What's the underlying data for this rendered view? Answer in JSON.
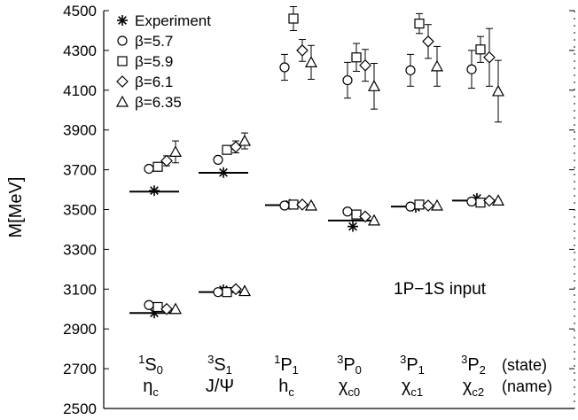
{
  "chart_data": {
    "type": "scatter",
    "ylabel": "M[MeV]",
    "ylim": [
      2500,
      4500
    ],
    "yticks": [
      2500,
      2700,
      2900,
      3100,
      3300,
      3500,
      3700,
      3900,
      4100,
      4300,
      4500
    ],
    "annotation": "1P−1S input",
    "row_labels": [
      "(state)",
      "(name)"
    ],
    "categories": [
      {
        "state_sym": "S",
        "state_sup": "1",
        "state_sub": "0",
        "name": "η",
        "name_sub": "c"
      },
      {
        "state_sym": "S",
        "state_sup": "3",
        "state_sub": "1",
        "name": "J/Ψ",
        "name_sub": ""
      },
      {
        "state_sym": "P",
        "state_sup": "1",
        "state_sub": "1",
        "name": "h",
        "name_sub": "c"
      },
      {
        "state_sym": "P",
        "state_sup": "3",
        "state_sub": "0",
        "name": "χ",
        "name_sub": "c0"
      },
      {
        "state_sym": "P",
        "state_sup": "3",
        "state_sub": "1",
        "name": "χ",
        "name_sub": "c1"
      },
      {
        "state_sym": "P",
        "state_sup": "3",
        "state_sub": "2",
        "name": "χ",
        "name_sub": "c2"
      }
    ],
    "experiment_levels": [
      {
        "category": 0,
        "values": [
          2980,
          3595
        ]
      },
      {
        "category": 1,
        "values": [
          3097,
          3686
        ]
      },
      {
        "category": 2,
        "values": [
          3526
        ]
      },
      {
        "category": 3,
        "values": [
          3415
        ]
      },
      {
        "category": 4,
        "values": [
          3511
        ]
      },
      {
        "category": 5,
        "values": [
          3556
        ]
      }
    ],
    "fit_lines": [
      {
        "category": 0,
        "values": [
          2980,
          3590
        ]
      },
      {
        "category": 1,
        "values": [
          3085,
          3685
        ]
      },
      {
        "category": 2,
        "values": [
          3522
        ]
      },
      {
        "category": 3,
        "values": [
          3445
        ]
      },
      {
        "category": 4,
        "values": [
          3515
        ]
      },
      {
        "category": 5,
        "values": [
          3545
        ]
      }
    ],
    "series": [
      {
        "name": "Experiment",
        "marker": "star",
        "points": [
          {
            "category": 0,
            "y": 2980
          },
          {
            "category": 0,
            "y": 3595
          },
          {
            "category": 1,
            "y": 3097
          },
          {
            "category": 1,
            "y": 3686
          },
          {
            "category": 2,
            "y": 3526
          },
          {
            "category": 3,
            "y": 3415
          },
          {
            "category": 4,
            "y": 3511
          },
          {
            "category": 5,
            "y": 3556
          }
        ]
      },
      {
        "name": "β=5.7",
        "marker": "circle",
        "points": [
          {
            "category": 0,
            "y": 3020,
            "err": 0
          },
          {
            "category": 0,
            "y": 3705,
            "err": 15
          },
          {
            "category": 1,
            "y": 3085,
            "err": 0
          },
          {
            "category": 1,
            "y": 3750,
            "err": 15
          },
          {
            "category": 2,
            "y": 3520,
            "err": 0
          },
          {
            "category": 2,
            "y": 4215,
            "err": 65
          },
          {
            "category": 3,
            "y": 3490,
            "err": 0
          },
          {
            "category": 3,
            "y": 4150,
            "err": 90
          },
          {
            "category": 4,
            "y": 3515,
            "err": 0
          },
          {
            "category": 4,
            "y": 4200,
            "err": 80
          },
          {
            "category": 5,
            "y": 3540,
            "err": 0
          },
          {
            "category": 5,
            "y": 4205,
            "err": 95
          }
        ]
      },
      {
        "name": "β=5.9",
        "marker": "square",
        "points": [
          {
            "category": 0,
            "y": 3010,
            "err": 0
          },
          {
            "category": 0,
            "y": 3715,
            "err": 15
          },
          {
            "category": 1,
            "y": 3085,
            "err": 0
          },
          {
            "category": 1,
            "y": 3800,
            "err": 20
          },
          {
            "category": 2,
            "y": 3525,
            "err": 0
          },
          {
            "category": 2,
            "y": 4460,
            "err": 60
          },
          {
            "category": 3,
            "y": 3475,
            "err": 0
          },
          {
            "category": 3,
            "y": 4265,
            "err": 70
          },
          {
            "category": 4,
            "y": 3525,
            "err": 0
          },
          {
            "category": 4,
            "y": 4435,
            "err": 50
          },
          {
            "category": 5,
            "y": 3535,
            "err": 0
          },
          {
            "category": 5,
            "y": 4305,
            "err": 65
          }
        ]
      },
      {
        "name": "β=6.1",
        "marker": "diamond",
        "points": [
          {
            "category": 0,
            "y": 3000,
            "err": 0
          },
          {
            "category": 0,
            "y": 3745,
            "err": 25
          },
          {
            "category": 1,
            "y": 3100,
            "err": 0
          },
          {
            "category": 1,
            "y": 3815,
            "err": 30
          },
          {
            "category": 2,
            "y": 3525,
            "err": 0
          },
          {
            "category": 2,
            "y": 4300,
            "err": 55
          },
          {
            "category": 3,
            "y": 3465,
            "err": 0
          },
          {
            "category": 3,
            "y": 4225,
            "err": 80
          },
          {
            "category": 4,
            "y": 3520,
            "err": 0
          },
          {
            "category": 4,
            "y": 4345,
            "err": 85
          },
          {
            "category": 5,
            "y": 3545,
            "err": 0
          },
          {
            "category": 5,
            "y": 4265,
            "err": 145
          }
        ]
      },
      {
        "name": "β=6.35",
        "marker": "triangle",
        "points": [
          {
            "category": 0,
            "y": 3000,
            "err": 0
          },
          {
            "category": 0,
            "y": 3790,
            "err": 55
          },
          {
            "category": 1,
            "y": 3090,
            "err": 0
          },
          {
            "category": 1,
            "y": 3845,
            "err": 40
          },
          {
            "category": 2,
            "y": 3520,
            "err": 0
          },
          {
            "category": 2,
            "y": 4240,
            "err": 85
          },
          {
            "category": 3,
            "y": 3445,
            "err": 0
          },
          {
            "category": 3,
            "y": 4120,
            "err": 115
          },
          {
            "category": 4,
            "y": 3520,
            "err": 0
          },
          {
            "category": 4,
            "y": 4220,
            "err": 100
          },
          {
            "category": 5,
            "y": 3545,
            "err": 0
          },
          {
            "category": 5,
            "y": 4095,
            "err": 155
          }
        ]
      }
    ]
  }
}
